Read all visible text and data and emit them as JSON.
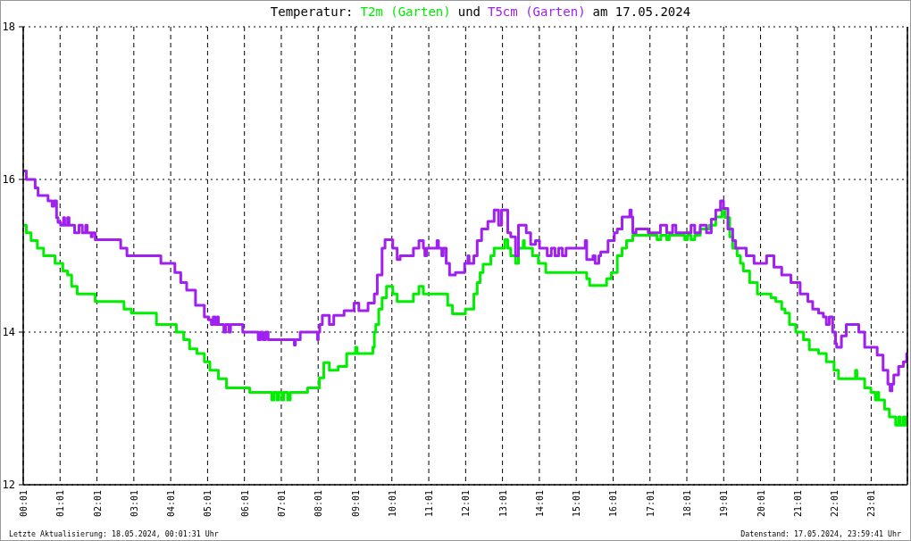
{
  "chart_data": {
    "type": "step",
    "title": "Temperatur:",
    "subtitle": "am 17.05.2024",
    "legend": "top",
    "annotations": [
      "und",
      "Letzte Aktualisierung: 18.05.2024, 00:01:31 Uhr",
      "Datenstand: 17.05.2024, 23:59:41 Uhr"
    ],
    "xlim": [
      0.0167,
      24
    ],
    "xticks": [
      {
        "value": 0.0167,
        "label": "00:01"
      },
      {
        "value": 1.0167,
        "label": "01:01"
      },
      {
        "value": 2.0167,
        "label": "02:01"
      },
      {
        "value": 3.0167,
        "label": "03:01"
      },
      {
        "value": 4.0167,
        "label": "04:01"
      },
      {
        "value": 5.0167,
        "label": "05:01"
      },
      {
        "value": 6.0167,
        "label": "06:01"
      },
      {
        "value": 7.0167,
        "label": "07:01"
      },
      {
        "value": 8.0167,
        "label": "08:01"
      },
      {
        "value": 9.0167,
        "label": "09:01"
      },
      {
        "value": 10.0167,
        "label": "10:01"
      },
      {
        "value": 11.0167,
        "label": "11:01"
      },
      {
        "value": 12.0167,
        "label": "12:01"
      },
      {
        "value": 13.0167,
        "label": "13:01"
      },
      {
        "value": 14.0167,
        "label": "14:01"
      },
      {
        "value": 15.0167,
        "label": "15:01"
      },
      {
        "value": 16.0167,
        "label": "16:01"
      },
      {
        "value": 17.0167,
        "label": "17:01"
      },
      {
        "value": 18.0167,
        "label": "18:01"
      },
      {
        "value": 19.0167,
        "label": "19:01"
      },
      {
        "value": 20.0167,
        "label": "20:01"
      },
      {
        "value": 21.0167,
        "label": "21:01"
      },
      {
        "value": 22.0167,
        "label": "22:01"
      },
      {
        "value": 23.0167,
        "label": "23:01"
      }
    ],
    "ylim": [
      12,
      18
    ],
    "yticks": [
      12,
      14,
      16,
      18
    ],
    "grid": true,
    "series": [
      {
        "name": "T2m (Garten)",
        "color": "#00ee00",
        "x": [
          0.02,
          0.1,
          0.23,
          0.4,
          0.57,
          0.88,
          1.09,
          1.22,
          1.33,
          1.48,
          1.97,
          2.75,
          2.95,
          3.63,
          4.17,
          4.37,
          4.53,
          4.73,
          4.93,
          5.08,
          5.31,
          5.53,
          6.16,
          6.76,
          6.82,
          6.9,
          6.95,
          7.04,
          7.08,
          7.19,
          7.26,
          7.73,
          8.05,
          8.17,
          8.32,
          8.56,
          8.79,
          9.03,
          9.07,
          9.5,
          9.54,
          9.58,
          9.66,
          9.75,
          9.87,
          10.04,
          10.16,
          10.6,
          10.75,
          10.87,
          11.53,
          11.66,
          12.01,
          12.24,
          12.33,
          12.41,
          12.49,
          12.7,
          12.79,
          13.08,
          13.16,
          13.24,
          13.37,
          13.45,
          13.58,
          13.61,
          13.83,
          13.99,
          14.19,
          15.3,
          15.38,
          15.84,
          15.97,
          16.13,
          16.26,
          16.38,
          16.55,
          17.21,
          17.31,
          17.47,
          17.54,
          17.96,
          18.03,
          18.13,
          18.23,
          18.38,
          18.63,
          18.8,
          18.97,
          19.05,
          19.18,
          19.26,
          19.38,
          19.47,
          19.55,
          19.72,
          19.93,
          20.3,
          20.43,
          20.59,
          20.68,
          20.8,
          20.97,
          21.18,
          21.34,
          21.59,
          21.8,
          22.01,
          22.13,
          22.59,
          22.63,
          22.84,
          23.01,
          23.13,
          23.18,
          23.22,
          23.38,
          23.51,
          23.68,
          23.76,
          23.81,
          23.89,
          23.94,
          23.98
        ],
        "values": [
          15.4,
          15.3,
          15.2,
          15.1,
          15.0,
          14.9,
          14.8,
          14.75,
          14.6,
          14.5,
          14.4,
          14.3,
          14.25,
          14.1,
          14.0,
          13.9,
          13.78,
          13.72,
          13.61,
          13.5,
          13.39,
          13.27,
          13.21,
          13.11,
          13.21,
          13.11,
          13.21,
          13.11,
          13.21,
          13.11,
          13.21,
          13.27,
          13.4,
          13.6,
          13.5,
          13.55,
          13.72,
          13.8,
          13.72,
          13.8,
          14.0,
          14.1,
          14.3,
          14.45,
          14.6,
          14.5,
          14.4,
          14.5,
          14.6,
          14.5,
          14.35,
          14.24,
          14.3,
          14.5,
          14.65,
          14.78,
          14.89,
          15.0,
          15.1,
          15.21,
          15.1,
          15.0,
          14.9,
          15.1,
          15.2,
          15.1,
          15.0,
          14.9,
          14.78,
          14.7,
          14.61,
          14.7,
          14.78,
          15.0,
          15.1,
          15.2,
          15.27,
          15.21,
          15.27,
          15.21,
          15.27,
          15.21,
          15.27,
          15.21,
          15.27,
          15.35,
          15.4,
          15.51,
          15.62,
          15.5,
          15.25,
          15.1,
          15.0,
          14.9,
          14.8,
          14.65,
          14.5,
          14.45,
          14.4,
          14.3,
          14.25,
          14.1,
          14.0,
          13.9,
          13.77,
          13.72,
          13.61,
          13.5,
          13.39,
          13.5,
          13.39,
          13.27,
          13.21,
          13.11,
          13.21,
          13.11,
          12.99,
          12.89,
          12.78,
          12.89,
          12.78,
          12.89,
          12.78,
          12.89
        ]
      },
      {
        "name": "T5cm (Garten)",
        "color": "#a020f0",
        "x": [
          0.02,
          0.1,
          0.34,
          0.42,
          0.69,
          0.8,
          0.85,
          0.92,
          0.96,
          1.03,
          1.11,
          1.14,
          1.22,
          1.26,
          1.41,
          1.53,
          1.62,
          1.71,
          1.75,
          1.86,
          1.89,
          1.97,
          2.66,
          2.83,
          3.75,
          4.13,
          4.29,
          4.45,
          4.69,
          4.93,
          5.05,
          5.12,
          5.17,
          5.23,
          5.28,
          5.31,
          5.46,
          5.51,
          5.6,
          5.64,
          5.97,
          6.39,
          6.45,
          6.52,
          6.59,
          6.66,
          7.37,
          7.4,
          7.53,
          8.0,
          8.02,
          8.06,
          8.13,
          8.32,
          8.44,
          8.72,
          8.99,
          9.12,
          9.37,
          9.54,
          9.62,
          9.75,
          9.83,
          10.04,
          10.16,
          10.24,
          10.6,
          10.75,
          10.87,
          10.91,
          10.96,
          11.24,
          11.28,
          11.37,
          11.41,
          11.49,
          11.58,
          11.74,
          11.99,
          12.08,
          12.11,
          12.24,
          12.33,
          12.45,
          12.62,
          12.79,
          12.91,
          12.99,
          13.16,
          13.24,
          13.37,
          13.45,
          13.66,
          13.78,
          13.91,
          14.02,
          14.23,
          14.34,
          14.44,
          14.54,
          14.64,
          14.74,
          15.26,
          15.3,
          15.47,
          15.53,
          15.63,
          15.68,
          15.88,
          16.05,
          16.13,
          16.26,
          16.47,
          16.51,
          16.55,
          16.64,
          16.97,
          17.3,
          17.47,
          17.63,
          17.72,
          18.13,
          18.23,
          18.38,
          18.55,
          18.68,
          18.8,
          18.93,
          19.01,
          19.13,
          19.26,
          19.34,
          19.63,
          19.84,
          20.18,
          20.38,
          20.59,
          20.84,
          21.09,
          21.3,
          21.43,
          21.59,
          21.72,
          21.8,
          21.88,
          21.97,
          22.05,
          22.08,
          22.21,
          22.34,
          22.68,
          22.84,
          23.18,
          23.34,
          23.47,
          23.53,
          23.58,
          23.63,
          23.76,
          23.89,
          23.98
        ],
        "values": [
          16.11,
          16.0,
          15.89,
          15.79,
          15.72,
          15.65,
          15.72,
          15.5,
          15.44,
          15.4,
          15.5,
          15.4,
          15.5,
          15.4,
          15.3,
          15.4,
          15.3,
          15.4,
          15.3,
          15.25,
          15.3,
          15.21,
          15.1,
          15.0,
          14.9,
          14.78,
          14.65,
          14.55,
          14.35,
          14.2,
          14.16,
          14.1,
          14.2,
          14.1,
          14.2,
          14.1,
          14.0,
          14.1,
          14.0,
          14.1,
          14.0,
          13.9,
          14.0,
          13.9,
          14.0,
          13.9,
          13.83,
          13.9,
          14.0,
          13.9,
          14.0,
          14.1,
          14.22,
          14.1,
          14.22,
          14.28,
          14.38,
          14.28,
          14.38,
          14.5,
          14.75,
          15.1,
          15.21,
          15.1,
          14.95,
          15.0,
          15.1,
          15.2,
          15.1,
          15.0,
          15.1,
          15.2,
          15.1,
          15.0,
          15.1,
          14.9,
          14.75,
          14.78,
          14.9,
          15.0,
          14.9,
          15.0,
          15.2,
          15.35,
          15.45,
          15.6,
          15.4,
          15.6,
          15.3,
          15.25,
          15.0,
          15.4,
          15.3,
          15.15,
          15.2,
          15.1,
          15.0,
          15.1,
          15.0,
          15.1,
          15.0,
          15.1,
          15.2,
          14.95,
          15.0,
          14.9,
          15.0,
          15.05,
          15.2,
          15.3,
          15.35,
          15.51,
          15.6,
          15.51,
          15.3,
          15.35,
          15.3,
          15.4,
          15.3,
          15.4,
          15.3,
          15.4,
          15.3,
          15.4,
          15.3,
          15.48,
          15.6,
          15.72,
          15.62,
          15.35,
          15.2,
          15.1,
          15.0,
          14.9,
          15.0,
          14.85,
          14.75,
          14.65,
          14.5,
          14.4,
          14.3,
          14.25,
          14.2,
          14.1,
          14.2,
          14.0,
          13.85,
          13.8,
          13.95,
          14.1,
          14.0,
          13.8,
          13.7,
          13.5,
          13.32,
          13.23,
          13.32,
          13.44,
          13.55,
          13.61,
          13.72
        ]
      }
    ]
  }
}
